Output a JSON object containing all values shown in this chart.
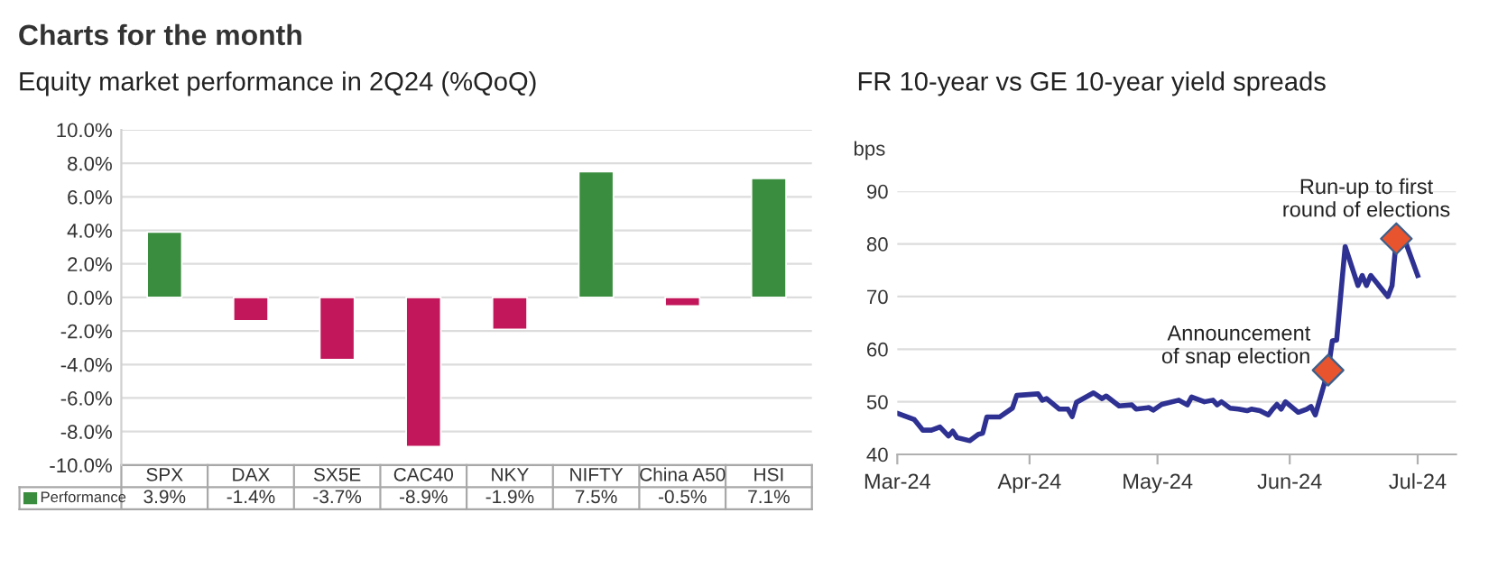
{
  "chart_data": [
    {
      "type": "bar",
      "title": "Charts for the month",
      "subtitle": "Equity market performance in 2Q24 (%QoQ)",
      "categories": [
        "SPX",
        "DAX",
        "SX5E",
        "CAC40",
        "NKY",
        "NIFTY",
        "China A50",
        "HSI"
      ],
      "series": [
        {
          "name": "Performance",
          "color": "#3a8d3e",
          "colors": [
            "#3a8d3e",
            "#c2185b",
            "#c2185b",
            "#c2185b",
            "#c2185b",
            "#3a8d3e",
            "#c2185b",
            "#3a8d3e"
          ],
          "values": [
            3.9,
            -1.4,
            -3.7,
            -8.9,
            -1.9,
            7.5,
            -0.5,
            7.1
          ],
          "value_labels": [
            "3.9%",
            "-1.4%",
            "-3.7%",
            "-8.9%",
            "-1.9%",
            "7.5%",
            "-0.5%",
            "7.1%"
          ]
        }
      ],
      "ylim": [
        -10,
        10
      ],
      "yticks": [
        {
          "value": -10,
          "label": "-10.0%"
        },
        {
          "value": -8,
          "label": "-8.0%"
        },
        {
          "value": -6,
          "label": "-6.0%"
        },
        {
          "value": -4,
          "label": "-4.0%"
        },
        {
          "value": -2,
          "label": "-2.0%"
        },
        {
          "value": 0,
          "label": "0.0%"
        },
        {
          "value": 2,
          "label": "2.0%"
        },
        {
          "value": 4,
          "label": "4.0%"
        },
        {
          "value": 6,
          "label": "6.0%"
        },
        {
          "value": 8,
          "label": "8.0%"
        },
        {
          "value": 10,
          "label": "10.0%"
        }
      ],
      "grid": "y",
      "legend": "bottom"
    },
    {
      "type": "line",
      "title": "FR 10-year vs GE 10-year yield spreads",
      "ylabel": "bps",
      "series": [
        {
          "type": "line",
          "color": "#2e3192",
          "x": [
            "2024-03-01",
            "2024-03-05",
            "2024-03-07",
            "2024-03-09",
            "2024-03-11",
            "2024-03-13",
            "2024-03-14",
            "2024-03-15",
            "2024-03-18",
            "2024-03-20",
            "2024-03-21",
            "2024-03-22",
            "2024-03-25",
            "2024-03-28",
            "2024-03-29",
            "2024-04-03",
            "2024-04-04",
            "2024-04-05",
            "2024-04-08",
            "2024-04-10",
            "2024-04-11",
            "2024-04-12",
            "2024-04-16",
            "2024-04-18",
            "2024-04-19",
            "2024-04-22",
            "2024-04-25",
            "2024-04-26",
            "2024-04-29",
            "2024-04-30",
            "2024-05-02",
            "2024-05-06",
            "2024-05-08",
            "2024-05-09",
            "2024-05-12",
            "2024-05-14",
            "2024-05-15",
            "2024-05-16",
            "2024-05-18",
            "2024-05-20",
            "2024-05-22",
            "2024-05-23",
            "2024-05-25",
            "2024-05-27",
            "2024-05-28",
            "2024-05-29",
            "2024-05-30",
            "2024-05-31",
            "2024-06-03",
            "2024-06-05",
            "2024-06-06",
            "2024-06-07",
            "2024-06-10",
            "2024-06-11",
            "2024-06-12",
            "2024-06-14",
            "2024-06-17",
            "2024-06-18",
            "2024-06-19",
            "2024-06-20",
            "2024-06-24",
            "2024-06-25",
            "2024-06-26",
            "2024-06-28",
            "2024-07-01"
          ],
          "values": [
            47.8,
            46.6,
            44.6,
            44.6,
            45.2,
            43.5,
            44.4,
            43.2,
            42.6,
            43.8,
            44.0,
            47.1,
            47.1,
            48.8,
            51.2,
            51.5,
            50.3,
            50.6,
            48.6,
            48.6,
            47.2,
            49.9,
            51.7,
            50.6,
            51.1,
            49.2,
            49.4,
            48.6,
            48.9,
            48.4,
            49.5,
            50.3,
            49.4,
            50.9,
            50.0,
            50.3,
            49.4,
            50.0,
            48.8,
            48.6,
            48.3,
            48.6,
            48.3,
            47.5,
            48.6,
            49.5,
            48.6,
            50.0,
            48.0,
            48.6,
            49.1,
            47.5,
            55.9,
            61.6,
            61.7,
            79.5,
            72.1,
            74.0,
            72.1,
            74.0,
            70.0,
            72.1,
            81.0,
            80.7,
            74.0
          ]
        },
        {
          "type": "scatter",
          "color": "#e8542e",
          "marker": "diamond",
          "x": [
            "2024-06-10",
            "2024-06-26"
          ],
          "values": [
            56,
            81
          ]
        }
      ],
      "annotations": [
        {
          "text": "Announcement\nof snap election",
          "x": "2024-06-10",
          "y": 56
        },
        {
          "text": "Run-up to first\nround of elections",
          "x": "2024-06-26",
          "y": 81
        }
      ],
      "xlim": [
        "2024-03-01",
        "2024-07-10"
      ],
      "xticks": [
        {
          "value": "2024-03-01",
          "label": "Mar-24"
        },
        {
          "value": "2024-04-01",
          "label": "Apr-24"
        },
        {
          "value": "2024-05-01",
          "label": "May-24"
        },
        {
          "value": "2024-06-01",
          "label": "Jun-24"
        },
        {
          "value": "2024-07-01",
          "label": "Jul-24"
        }
      ],
      "ylim": [
        40,
        90
      ],
      "yticks": [
        40,
        50,
        60,
        70,
        80,
        90
      ],
      "grid": "y",
      "legend": false
    }
  ]
}
